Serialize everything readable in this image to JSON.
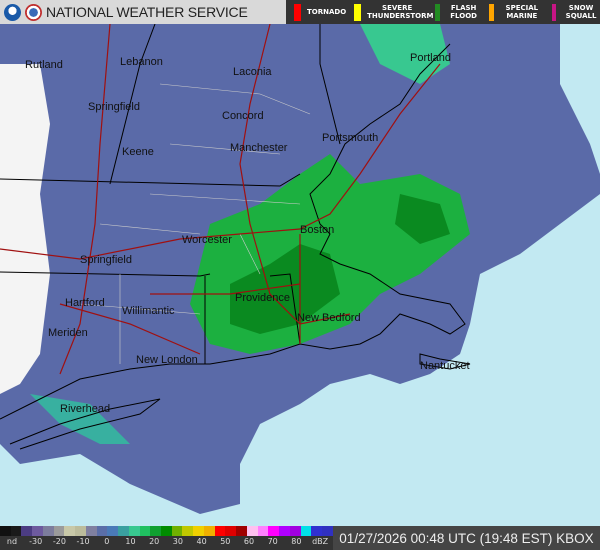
{
  "header": {
    "title": "NATIONAL WEATHER SERVICE",
    "logos": [
      "noaa-logo",
      "nws-logo"
    ]
  },
  "warnings": [
    {
      "label": "TORNADO",
      "color": "#ff0000"
    },
    {
      "label": "SEVERE THUNDERSTORM",
      "color": "#ffff00"
    },
    {
      "label": "FLASH FLOOD",
      "color": "#228b22"
    },
    {
      "label": "SPECIAL MARINE",
      "color": "#ffa500"
    },
    {
      "label": "SNOW SQUALL",
      "color": "#c71585"
    }
  ],
  "cities": [
    "Rutland",
    "Lebanon",
    "Laconia",
    "Portland",
    "Springfield",
    "Concord",
    "Keene",
    "Manchester",
    "Portsmouth",
    "Worcester",
    "Boston",
    "Springfield",
    "Hartford",
    "Providence",
    "Willimantic",
    "New Bedford",
    "Meriden",
    "New London",
    "Nantucket",
    "Riverhead"
  ],
  "scale": {
    "labels": [
      "nd",
      "-30",
      "-20",
      "-10",
      "0",
      "10",
      "20",
      "30",
      "40",
      "50",
      "60",
      "70",
      "80",
      "dBZ"
    ],
    "colors": [
      "#111111",
      "#1a1a1a",
      "#4b3c82",
      "#6d5a9e",
      "#7d7d9d",
      "#9b9b9b",
      "#c8c8a8",
      "#bcbc9c",
      "#8080a0",
      "#5a6ea8",
      "#4a7ab8",
      "#3aa0a0",
      "#38c890",
      "#20c060",
      "#10a030",
      "#008c00",
      "#70b000",
      "#c0c800",
      "#f0d000",
      "#f0b000",
      "#ff0000",
      "#e00000",
      "#a00000",
      "#ffc0f0",
      "#ff80ff",
      "#ff00ff",
      "#b000ff",
      "#a000e0",
      "#00e0e8",
      "#3030d0",
      "#3030c0"
    ]
  },
  "timestamp": "01/27/2026 00:48 UTC (19:48 EST) KBOX"
}
